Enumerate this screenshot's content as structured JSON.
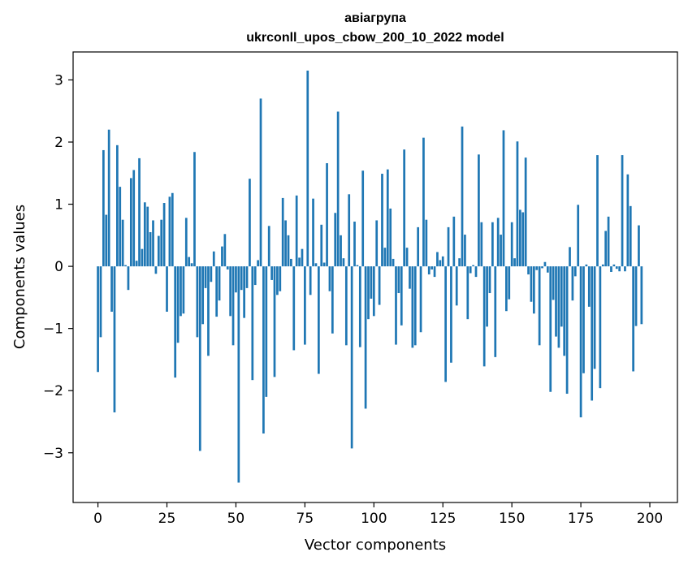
{
  "chart_data": {
    "type": "bar",
    "title_line1": "авіагрупа",
    "title_line2": "ukrconll_upos_cbow_200_10_2022 model",
    "xlabel": "Vector components",
    "ylabel": "Components values",
    "xlim": [
      -9,
      210
    ],
    "ylim": [
      -3.8,
      3.45
    ],
    "xticks": [
      0,
      25,
      50,
      75,
      100,
      125,
      150,
      175,
      200
    ],
    "yticks": [
      3,
      2,
      1,
      0,
      -1,
      -2,
      -3
    ],
    "xtick_labels": [
      "0",
      "25",
      "50",
      "75",
      "100",
      "125",
      "150",
      "175",
      "200"
    ],
    "ytick_labels": [
      "3",
      "2",
      "1",
      "0",
      "−1",
      "−2",
      "−3"
    ],
    "bar_color": "#1f77b4",
    "grid": false,
    "values": [
      -1.7,
      -1.14,
      1.87,
      0.83,
      2.2,
      -0.73,
      -2.35,
      1.95,
      1.28,
      0.75,
      0.02,
      -0.38,
      1.42,
      1.55,
      0.09,
      1.74,
      0.28,
      1.03,
      0.96,
      0.55,
      0.74,
      -0.12,
      0.49,
      0.75,
      1.02,
      -0.73,
      1.12,
      1.18,
      -1.79,
      -1.23,
      -0.8,
      -0.76,
      0.78,
      0.15,
      0.05,
      1.84,
      -1.14,
      -2.97,
      -0.93,
      -0.35,
      -1.44,
      -0.25,
      0.24,
      -0.81,
      -0.55,
      0.32,
      0.52,
      -0.05,
      -0.8,
      -1.27,
      -0.42,
      -3.48,
      -0.38,
      -0.83,
      -0.35,
      1.41,
      -1.83,
      -0.3,
      0.1,
      2.7,
      -2.69,
      -2.1,
      0.65,
      -0.22,
      -1.78,
      -0.46,
      -0.4,
      1.1,
      0.74,
      0.5,
      0.12,
      -1.35,
      1.14,
      0.14,
      0.28,
      -1.26,
      3.15,
      -0.46,
      1.09,
      0.05,
      -1.73,
      0.67,
      0.06,
      1.66,
      -0.4,
      -1.08,
      0.86,
      2.49,
      0.5,
      0.13,
      -1.27,
      1.16,
      -2.93,
      0.72,
      0.02,
      -1.3,
      1.54,
      -2.29,
      -0.85,
      -0.52,
      -0.8,
      0.74,
      -0.62,
      1.49,
      0.3,
      1.56,
      0.93,
      0.12,
      -1.26,
      -0.43,
      -0.95,
      1.88,
      0.3,
      -0.36,
      -1.31,
      -1.27,
      0.63,
      -1.06,
      2.07,
      0.75,
      -0.13,
      -0.05,
      -0.17,
      0.23,
      0.1,
      0.16,
      -1.86,
      0.63,
      -1.55,
      0.8,
      -0.63,
      0.13,
      2.25,
      0.51,
      -0.85,
      -0.11,
      0.02,
      -0.17,
      1.8,
      0.71,
      -1.61,
      -0.97,
      -0.43,
      0.71,
      -1.46,
      0.78,
      0.51,
      2.19,
      -0.72,
      -0.53,
      0.71,
      0.13,
      2.01,
      0.91,
      0.87,
      1.75,
      -0.13,
      -0.57,
      -0.76,
      -0.06,
      -1.27,
      -0.03,
      0.07,
      -0.1,
      -2.02,
      -0.54,
      -1.13,
      -1.31,
      -0.97,
      -1.44,
      -2.05,
      0.31,
      -0.55,
      -0.16,
      0.99,
      -2.43,
      -1.72,
      0.03,
      -0.65,
      -2.16,
      -1.65,
      1.79,
      -1.96,
      0.03,
      0.57,
      0.8,
      -0.09,
      0.03,
      -0.04,
      -0.08,
      1.79,
      -0.08,
      1.48,
      0.97,
      -1.69,
      -0.96,
      0.66,
      -0.93
    ]
  }
}
